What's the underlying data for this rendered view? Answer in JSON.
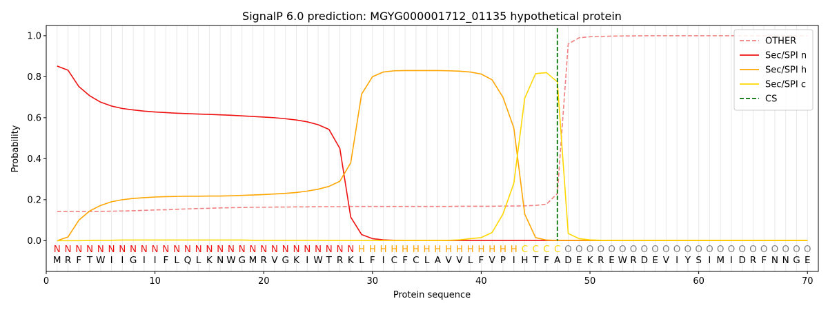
{
  "chart_data": {
    "type": "line",
    "title": "SignalP 6.0 prediction: MGYG000001712_01135 hypothetical protein",
    "xlabel": "Protein sequence",
    "ylabel": "Probability",
    "xlim": [
      0,
      71
    ],
    "ylim": [
      -0.15,
      1.05
    ],
    "xticks": [
      0,
      10,
      20,
      30,
      40,
      50,
      60,
      70
    ],
    "yticks": [
      0.0,
      0.2,
      0.4,
      0.6,
      0.8,
      1.0
    ],
    "ytick_labels": [
      "0.0",
      "0.2",
      "0.4",
      "0.6",
      "0.8",
      "1.0"
    ],
    "legend_position": "top-right",
    "grid": "vertical lines at each residue",
    "x": [
      1,
      2,
      3,
      4,
      5,
      6,
      7,
      8,
      9,
      10,
      11,
      12,
      13,
      14,
      15,
      16,
      17,
      18,
      19,
      20,
      21,
      22,
      23,
      24,
      25,
      26,
      27,
      28,
      29,
      30,
      31,
      32,
      33,
      34,
      35,
      36,
      37,
      38,
      39,
      40,
      41,
      42,
      43,
      44,
      45,
      46,
      47,
      48,
      49,
      50,
      51,
      52,
      53,
      54,
      55,
      56,
      57,
      58,
      59,
      60,
      61,
      62,
      63,
      64,
      65,
      66,
      67,
      68,
      69,
      70
    ],
    "series": [
      {
        "name": "OTHER",
        "color": "#f08080",
        "style": "dashed",
        "values": [
          0.143,
          0.143,
          0.143,
          0.143,
          0.143,
          0.144,
          0.145,
          0.146,
          0.148,
          0.15,
          0.151,
          0.153,
          0.155,
          0.157,
          0.158,
          0.16,
          0.161,
          0.162,
          0.163,
          0.163,
          0.164,
          0.164,
          0.165,
          0.165,
          0.166,
          0.166,
          0.166,
          0.167,
          0.167,
          0.167,
          0.167,
          0.167,
          0.167,
          0.167,
          0.167,
          0.167,
          0.167,
          0.168,
          0.168,
          0.168,
          0.168,
          0.169,
          0.169,
          0.17,
          0.172,
          0.178,
          0.23,
          0.96,
          0.99,
          0.995,
          0.997,
          0.998,
          0.999,
          0.999,
          1.0,
          1.0,
          1.0,
          1.0,
          1.0,
          1.0,
          1.0,
          1.0,
          1.0,
          1.0,
          1.0,
          1.0,
          1.0,
          1.0,
          1.0,
          1.0
        ]
      },
      {
        "name": "Sec/SPI n",
        "color": "#ee1111",
        "style": "solid",
        "values": [
          0.852,
          0.832,
          0.752,
          0.707,
          0.676,
          0.657,
          0.645,
          0.638,
          0.632,
          0.628,
          0.625,
          0.622,
          0.62,
          0.618,
          0.616,
          0.614,
          0.612,
          0.609,
          0.606,
          0.603,
          0.6,
          0.595,
          0.589,
          0.58,
          0.566,
          0.543,
          0.45,
          0.115,
          0.03,
          0.01,
          0.004,
          0.002,
          0.001,
          0.001,
          0.001,
          0.001,
          0.001,
          0.001,
          0.001,
          0.001,
          0.001,
          0.001,
          0.001,
          0.001,
          0.001,
          0.001,
          0.001,
          0.001,
          0.001,
          0.001,
          0.001,
          0.001,
          0.001,
          0.001,
          0.001,
          0.001,
          0.001,
          0.001,
          0.001,
          0.001,
          0.001,
          0.001,
          0.001,
          0.001,
          0.001,
          0.001,
          0.001,
          0.001,
          0.001,
          0.001
        ]
      },
      {
        "name": "Sec/SPI h",
        "color": "#ffa500",
        "style": "solid",
        "values": [
          0.0,
          0.018,
          0.1,
          0.145,
          0.172,
          0.19,
          0.2,
          0.206,
          0.21,
          0.213,
          0.215,
          0.216,
          0.217,
          0.217,
          0.218,
          0.218,
          0.219,
          0.221,
          0.223,
          0.225,
          0.228,
          0.231,
          0.235,
          0.242,
          0.251,
          0.265,
          0.29,
          0.38,
          0.715,
          0.8,
          0.823,
          0.829,
          0.83,
          0.83,
          0.83,
          0.83,
          0.829,
          0.827,
          0.823,
          0.813,
          0.785,
          0.7,
          0.55,
          0.13,
          0.015,
          0.003,
          0.001,
          0.001,
          0.001,
          0.001,
          0.001,
          0.001,
          0.001,
          0.001,
          0.001,
          0.001,
          0.001,
          0.001,
          0.001,
          0.001,
          0.001,
          0.001,
          0.001,
          0.001,
          0.001,
          0.001,
          0.001,
          0.001,
          0.001,
          0.001
        ]
      },
      {
        "name": "Sec/SPI c",
        "color": "#ffd700",
        "style": "solid",
        "values": [
          0.0,
          0.0,
          0.0,
          0.001,
          0.002,
          0.002,
          0.003,
          0.003,
          0.003,
          0.003,
          0.003,
          0.003,
          0.003,
          0.003,
          0.003,
          0.003,
          0.003,
          0.003,
          0.002,
          0.002,
          0.002,
          0.002,
          0.002,
          0.002,
          0.002,
          0.001,
          0.001,
          0.001,
          0.001,
          0.001,
          0.001,
          0.001,
          0.001,
          0.001,
          0.001,
          0.001,
          0.002,
          0.004,
          0.01,
          0.015,
          0.04,
          0.13,
          0.28,
          0.695,
          0.815,
          0.82,
          0.775,
          0.035,
          0.01,
          0.004,
          0.002,
          0.001,
          0.001,
          0.001,
          0.001,
          0.001,
          0.001,
          0.001,
          0.001,
          0.001,
          0.001,
          0.001,
          0.001,
          0.001,
          0.001,
          0.001,
          0.001,
          0.001,
          0.001,
          0.001
        ]
      }
    ],
    "cleavage_site": {
      "name": "CS",
      "x": 47,
      "color": "#007000",
      "style": "dashed"
    },
    "sequence": [
      "M",
      "R",
      "F",
      "T",
      "W",
      "I",
      "I",
      "G",
      "I",
      "I",
      "F",
      "L",
      "Q",
      "L",
      "K",
      "N",
      "W",
      "G",
      "M",
      "R",
      "V",
      "G",
      "K",
      "I",
      "W",
      "T",
      "R",
      "K",
      "L",
      "F",
      "I",
      "C",
      "F",
      "C",
      "L",
      "A",
      "V",
      "V",
      "L",
      "F",
      "V",
      "P",
      "I",
      "H",
      "T",
      "F",
      "A",
      "D",
      "E",
      "K",
      "R",
      "E",
      "W",
      "R",
      "D",
      "E",
      "V",
      "I",
      "Y",
      "S",
      "I",
      "M",
      "I",
      "D",
      "R",
      "F",
      "N",
      "N",
      "G",
      "E"
    ],
    "labels": [
      "N",
      "N",
      "N",
      "N",
      "N",
      "N",
      "N",
      "N",
      "N",
      "N",
      "N",
      "N",
      "N",
      "N",
      "N",
      "N",
      "N",
      "N",
      "N",
      "N",
      "N",
      "N",
      "N",
      "N",
      "N",
      "N",
      "N",
      "N",
      "H",
      "H",
      "H",
      "H",
      "H",
      "H",
      "H",
      "H",
      "H",
      "H",
      "H",
      "H",
      "H",
      "H",
      "H",
      "C",
      "C",
      "C",
      "C",
      "O",
      "O",
      "O",
      "O",
      "O",
      "O",
      "O",
      "O",
      "O",
      "O",
      "O",
      "O",
      "O",
      "O",
      "O",
      "O",
      "O",
      "O",
      "O",
      "O",
      "O",
      "O",
      "O"
    ],
    "label_colors": {
      "N": "#ee1111",
      "H": "#ffa500",
      "C": "#ffd700",
      "O": "#808080"
    }
  }
}
